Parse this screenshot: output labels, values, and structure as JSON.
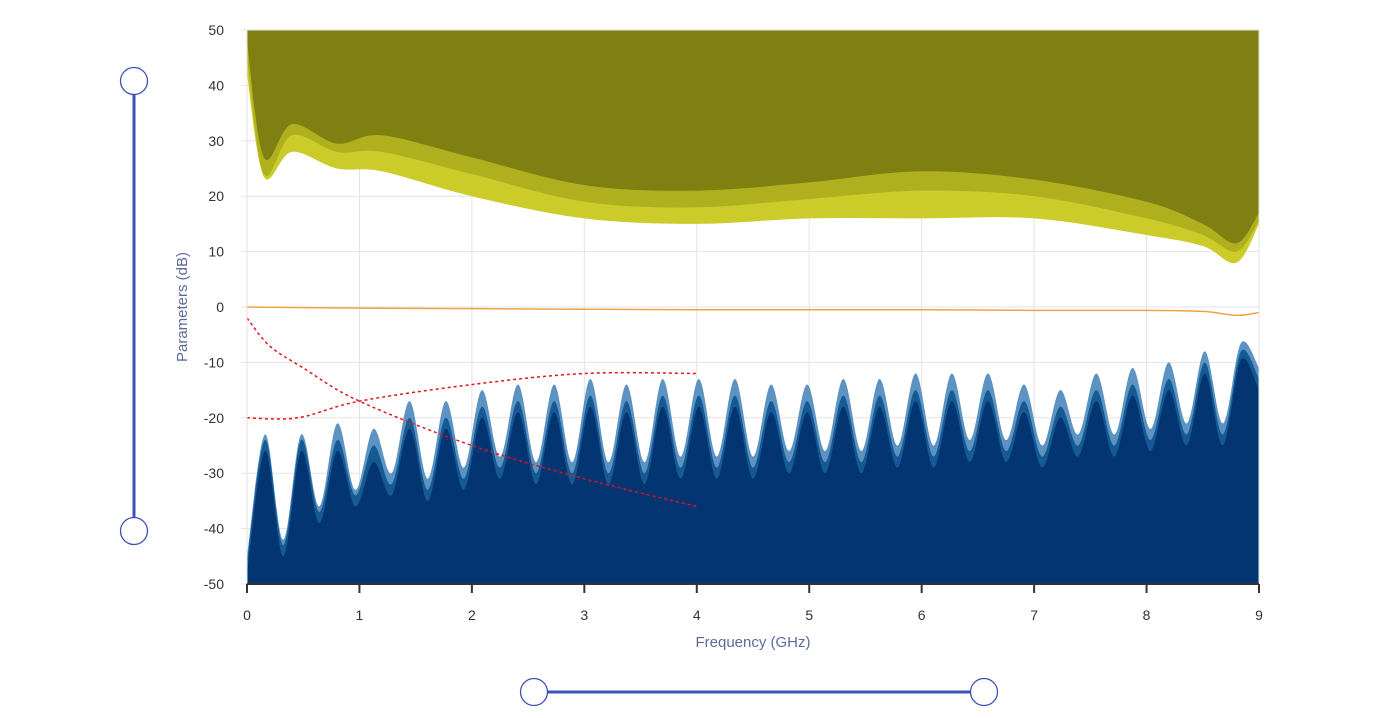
{
  "chart_data": {
    "type": "area",
    "xlabel": "Frequency (GHz)",
    "ylabel": "Parameters (dB)",
    "xlim": [
      0,
      9
    ],
    "ylim": [
      -50,
      50
    ],
    "xticks": [
      "0",
      "1",
      "2",
      "3",
      "4",
      "5",
      "6",
      "7",
      "8",
      "9"
    ],
    "yticks": [
      "50",
      "40",
      "30",
      "20",
      "10",
      "0",
      "-10",
      "-20",
      "-30",
      "-40",
      "-50"
    ],
    "grid": true,
    "upper_bands": [
      {
        "name": "band-light",
        "color": "#cbcb2a",
        "points": [
          [
            0,
            42
          ],
          [
            0.15,
            23.5
          ],
          [
            0.4,
            28
          ],
          [
            0.8,
            25
          ],
          [
            1.2,
            24.5
          ],
          [
            2,
            20
          ],
          [
            3,
            16
          ],
          [
            4,
            15
          ],
          [
            5,
            16
          ],
          [
            6,
            16
          ],
          [
            7,
            16
          ],
          [
            8,
            13
          ],
          [
            8.5,
            11
          ],
          [
            8.8,
            8
          ],
          [
            9,
            15
          ]
        ]
      },
      {
        "name": "band-mid",
        "color": "#b0b01f",
        "points": [
          [
            0,
            45
          ],
          [
            0.15,
            24
          ],
          [
            0.4,
            31
          ],
          [
            0.8,
            28
          ],
          [
            1.2,
            28
          ],
          [
            2,
            24
          ],
          [
            3,
            19
          ],
          [
            4,
            18
          ],
          [
            5,
            19.5
          ],
          [
            6,
            21
          ],
          [
            7,
            20
          ],
          [
            8,
            16
          ],
          [
            8.5,
            13
          ],
          [
            8.8,
            10
          ],
          [
            9,
            15.5
          ]
        ]
      },
      {
        "name": "band-dark",
        "color": "#7f7f12",
        "points": [
          [
            0,
            48
          ],
          [
            0.15,
            27
          ],
          [
            0.4,
            33
          ],
          [
            0.8,
            29.5
          ],
          [
            1.2,
            31
          ],
          [
            2,
            27
          ],
          [
            3,
            22
          ],
          [
            4,
            21
          ],
          [
            5,
            22.5
          ],
          [
            6,
            24.5
          ],
          [
            7,
            23
          ],
          [
            8,
            19
          ],
          [
            8.5,
            15
          ],
          [
            8.8,
            11.5
          ],
          [
            9,
            17
          ]
        ]
      }
    ],
    "line": {
      "name": "reference-line",
      "color": "#f5a043",
      "points": [
        [
          0,
          0
        ],
        [
          1,
          -0.2
        ],
        [
          2,
          -0.3
        ],
        [
          3,
          -0.4
        ],
        [
          4,
          -0.5
        ],
        [
          5,
          -0.5
        ],
        [
          6,
          -0.5
        ],
        [
          7,
          -0.6
        ],
        [
          8,
          -0.6
        ],
        [
          8.5,
          -0.8
        ],
        [
          8.8,
          -1.5
        ],
        [
          9,
          -1
        ]
      ]
    },
    "dotted_lines": [
      {
        "name": "limit-curve-falling",
        "color": "#e8121c",
        "points": [
          [
            0,
            -2
          ],
          [
            0.2,
            -7
          ],
          [
            0.5,
            -11
          ],
          [
            1,
            -17
          ],
          [
            2,
            -25
          ],
          [
            3,
            -31
          ],
          [
            4,
            -36
          ]
        ]
      },
      {
        "name": "limit-curve-rising",
        "color": "#e8121c",
        "points": [
          [
            0,
            -20
          ],
          [
            0.45,
            -20
          ],
          [
            1,
            -17
          ],
          [
            2,
            -14
          ],
          [
            3,
            -12
          ],
          [
            4,
            -12
          ]
        ]
      }
    ],
    "lower_series": [
      {
        "name": "series-light",
        "color": "#5d93c3",
        "values": [
          -45,
          -23,
          -42,
          -23,
          -36,
          -21,
          -33,
          -22,
          -30,
          -17,
          -31,
          -17,
          -29,
          -15,
          -27,
          -14,
          -28,
          -14,
          -28,
          -13,
          -28,
          -14,
          -28,
          -13,
          -27,
          -13,
          -27,
          -13,
          -27,
          -14,
          -26,
          -14,
          -26,
          -13,
          -26,
          -13,
          -25,
          -12,
          -25,
          -12,
          -24,
          -12,
          -24,
          -14,
          -25,
          -15,
          -23,
          -12,
          -23,
          -11,
          -22,
          -10,
          -21,
          -8,
          -21,
          -6.5,
          -11
        ]
      },
      {
        "name": "series-mid",
        "color": "#155a93",
        "values": [
          -46,
          -24,
          -43,
          -24,
          -37,
          -24,
          -34,
          -25,
          -32,
          -20,
          -33,
          -20,
          -31,
          -18,
          -29,
          -17,
          -30,
          -17,
          -30,
          -16,
          -30,
          -17,
          -30,
          -16,
          -29,
          -16,
          -29,
          -16,
          -29,
          -17,
          -28,
          -17,
          -28,
          -16,
          -28,
          -16,
          -27,
          -15,
          -27,
          -15,
          -26,
          -15,
          -26,
          -17,
          -27,
          -18,
          -25,
          -15,
          -25,
          -14,
          -24,
          -13,
          -23,
          -10,
          -23,
          -8,
          -13
        ]
      },
      {
        "name": "series-dark",
        "color": "#023572",
        "values": [
          -48,
          -26,
          -45,
          -26,
          -39,
          -26,
          -36,
          -28,
          -34,
          -22,
          -35,
          -22,
          -33,
          -20,
          -31,
          -19,
          -32,
          -19,
          -32,
          -18,
          -32,
          -19,
          -32,
          -18,
          -31,
          -18,
          -31,
          -18,
          -31,
          -19,
          -30,
          -19,
          -30,
          -18,
          -30,
          -18,
          -29,
          -17,
          -29,
          -17,
          -28,
          -17,
          -28,
          -19,
          -29,
          -20,
          -27,
          -17,
          -27,
          -16,
          -26,
          -15,
          -25,
          -12,
          -25,
          -9.5,
          -15
        ]
      }
    ]
  },
  "sliders": {
    "accent": "#3f51b5",
    "vertical_range_db": [
      -40,
      40
    ],
    "horizontal_range_ghz": [
      2.55,
      6.55
    ]
  }
}
